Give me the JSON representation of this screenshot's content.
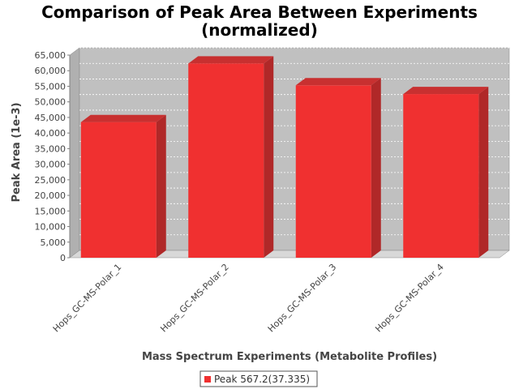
{
  "chart_data": {
    "type": "bar",
    "title_lines": [
      "Comparison of Peak Area Between Experiments",
      "(normalized)"
    ],
    "xlabel": "Mass Spectrum Experiments (Metabolite Profiles)",
    "ylabel": "Peak Area (1e-3)",
    "categories": [
      "Hops_GC-MS-Polar_1",
      "Hops_GC-MS-Polar_2",
      "Hops_GC-MS-Polar_3",
      "Hops_GC-MS-Polar_4"
    ],
    "series": [
      {
        "name": "Peak 567.2(37.335)",
        "values": [
          43500,
          62300,
          55300,
          52500
        ],
        "color": "#f03030"
      }
    ],
    "ylim": [
      0,
      65000
    ],
    "yticks": [
      0,
      5000,
      10000,
      15000,
      20000,
      25000,
      30000,
      35000,
      40000,
      45000,
      50000,
      55000,
      60000,
      65000
    ],
    "ytick_labels": [
      "0",
      "5,000",
      "10,000",
      "15,000",
      "20,000",
      "25,000",
      "30,000",
      "35,000",
      "40,000",
      "45,000",
      "50,000",
      "55,000",
      "60,000",
      "65,000"
    ],
    "grid": true,
    "legend_position": "bottom",
    "style": "3d",
    "plot_background": "#c0c0c0"
  }
}
